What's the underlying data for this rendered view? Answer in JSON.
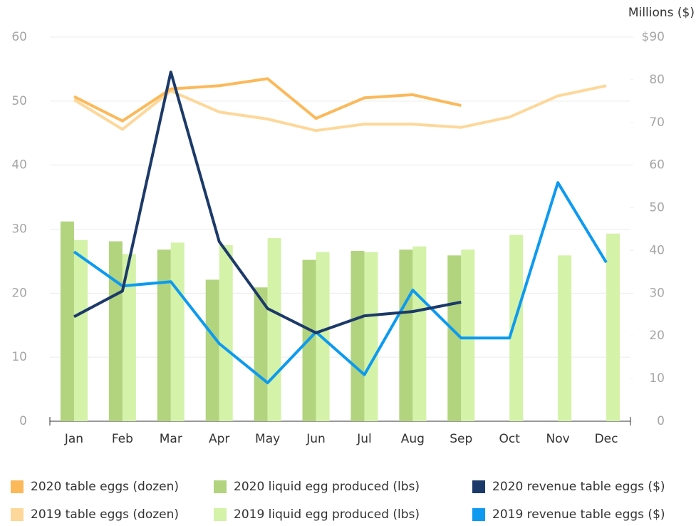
{
  "chart_data": {
    "type": "combo",
    "y2_label": "Millions ($)",
    "categories": [
      "Jan",
      "Feb",
      "Mar",
      "Apr",
      "May",
      "Jun",
      "Jul",
      "Aug",
      "Sep",
      "Oct",
      "Nov",
      "Dec"
    ],
    "ylim": [
      0,
      60
    ],
    "yticks": [
      0,
      10,
      20,
      30,
      40,
      50,
      60
    ],
    "y2lim": [
      0,
      90
    ],
    "y2ticks": [
      0,
      10,
      20,
      30,
      40,
      50,
      60,
      70,
      80,
      {
        "value": 90,
        "label": "$90"
      }
    ],
    "grid": true,
    "legend": "bottom",
    "series": [
      {
        "name": "2020 table eggs (dozen)",
        "type": "line",
        "color": "#fbb95a",
        "values": [
          50.7,
          46.9,
          51.9,
          52.4,
          53.5,
          47.3,
          50.5,
          51.0,
          49.3,
          null,
          null,
          null
        ]
      },
      {
        "name": "2019 table eggs (dozen)",
        "type": "line",
        "color": "#fdd89a",
        "values": [
          50.2,
          45.6,
          51.6,
          48.3,
          47.2,
          45.4,
          46.4,
          46.4,
          45.9,
          47.5,
          50.8,
          52.4
        ]
      },
      {
        "name": "2020 liquid egg produced (lbs)",
        "type": "bar",
        "color": "#b2d47e",
        "values": [
          31.2,
          28.1,
          26.8,
          22.1,
          20.9,
          25.2,
          26.6,
          26.8,
          25.9,
          null,
          null,
          null
        ]
      },
      {
        "name": "2019 liquid egg produced (lbs)",
        "type": "bar",
        "color": "#d4f2a8",
        "values": [
          28.3,
          26.1,
          27.9,
          27.5,
          28.6,
          26.4,
          26.4,
          27.3,
          26.8,
          29.1,
          25.9,
          29.3
        ]
      },
      {
        "name": "2020 revenue table eggs ($)",
        "type": "line",
        "axis": "y2",
        "color": "#1c3a69",
        "values": [
          24.5,
          30.5,
          81.8,
          42.1,
          26.4,
          20.7,
          24.7,
          25.7,
          27.9,
          null,
          null,
          null
        ]
      },
      {
        "name": "2019 revenue table eggs ($)",
        "type": "line",
        "axis": "y2",
        "color": "#0d9af0",
        "values": [
          39.7,
          31.7,
          32.7,
          18.2,
          9.0,
          20.9,
          10.9,
          30.7,
          19.5,
          19.5,
          55.9,
          37.2
        ]
      }
    ]
  }
}
